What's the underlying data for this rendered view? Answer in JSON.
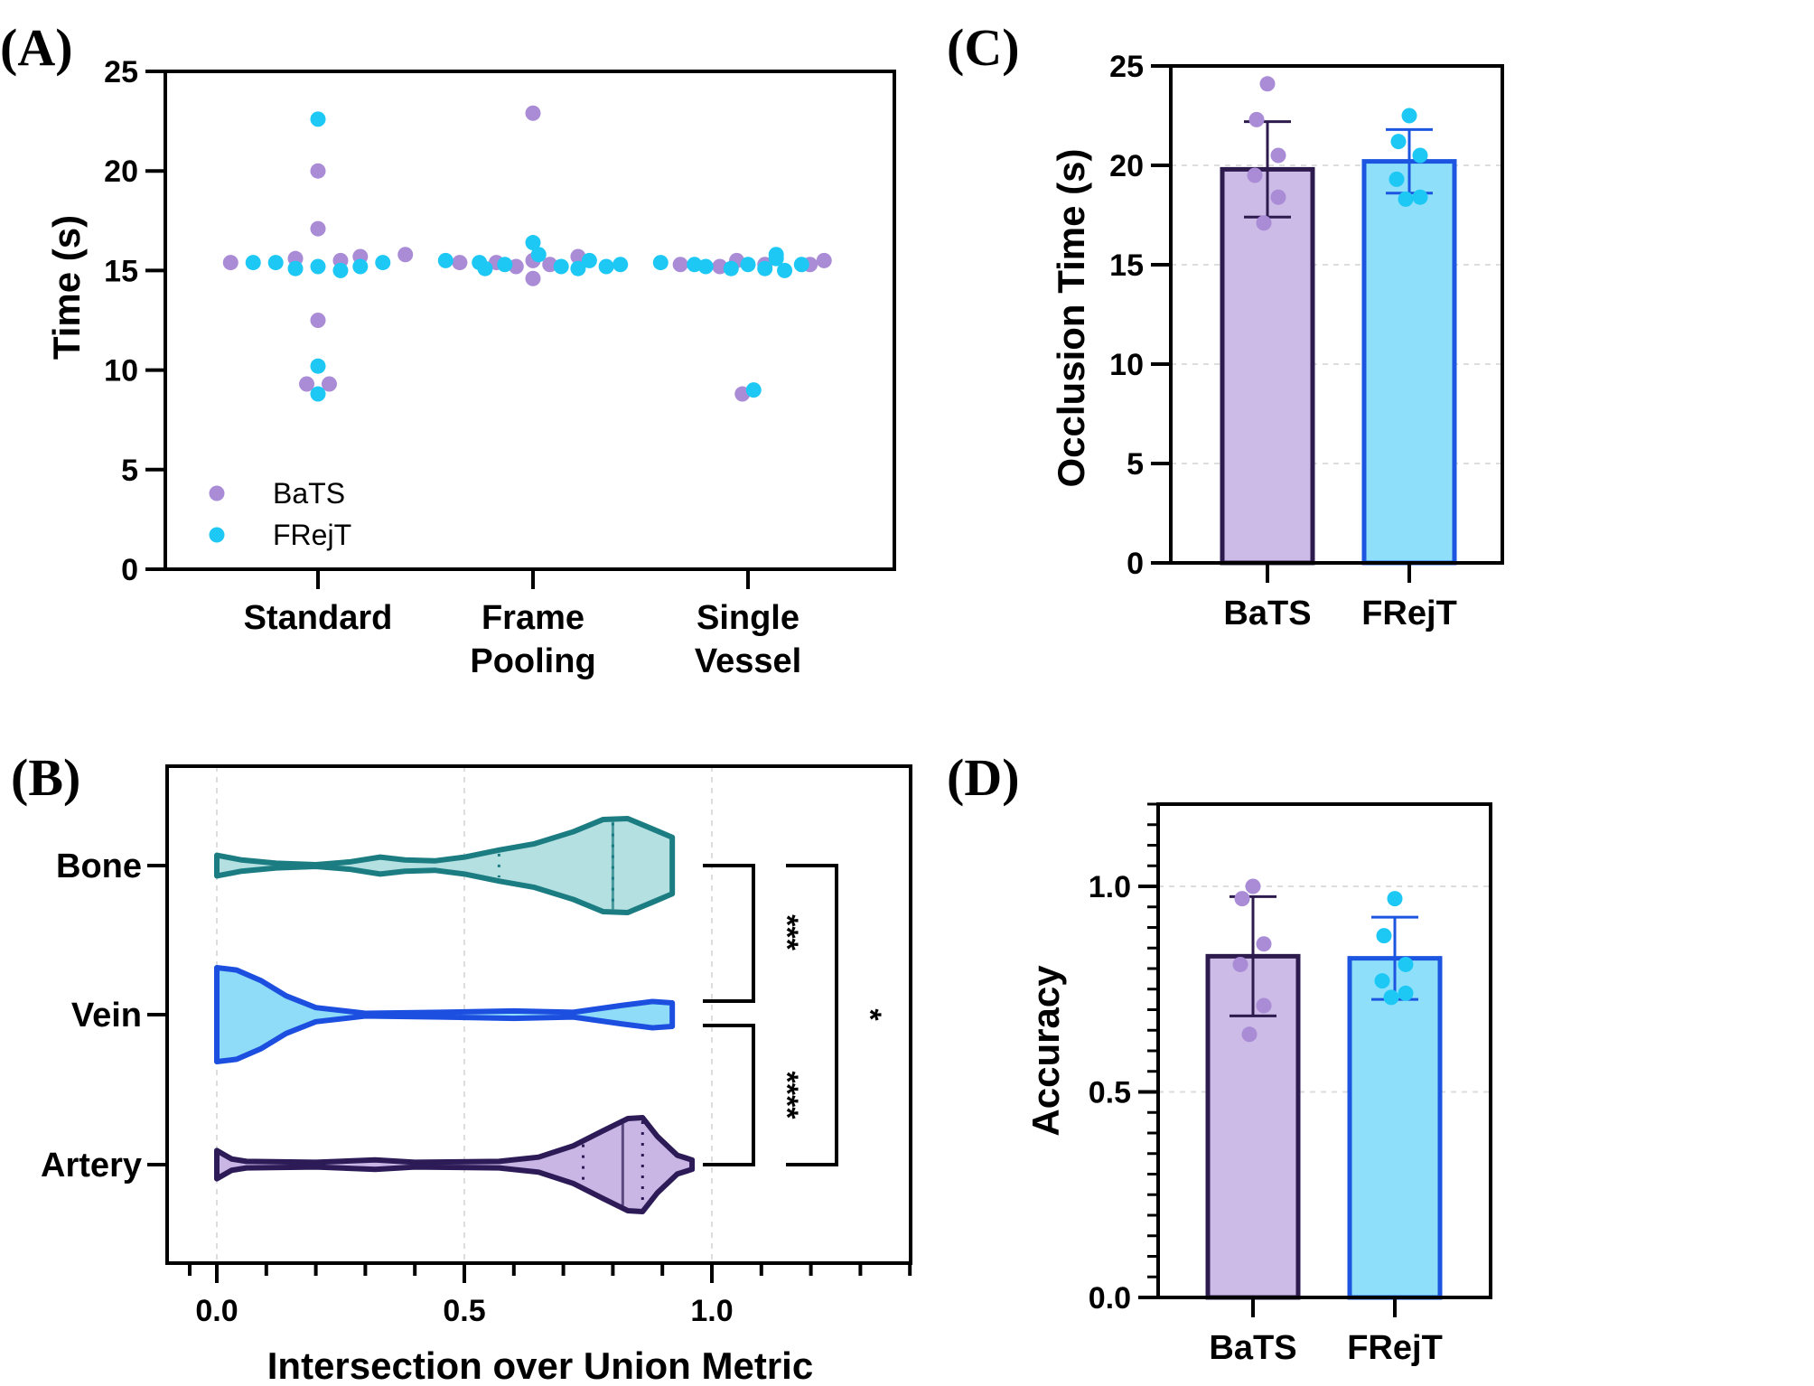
{
  "colors": {
    "bats_point": "#a98bd6",
    "frejt_point": "#1ec8f5",
    "bats_bar_fill": "#cbbbe6",
    "bats_bar_edge": "#2d1b4e",
    "frejt_bar_fill": "#8ee0fa",
    "frejt_bar_edge": "#1c55e0",
    "bone_fill": "#b5e0e2",
    "bone_edge": "#1b7c82",
    "vein_fill": "#8edcf8",
    "vein_edge": "#1c4fe0",
    "artery_fill": "#c9b6e4",
    "artery_edge": "#2d1b57",
    "grid": "#dddddd"
  },
  "chart_data": [
    {
      "id": "A",
      "panel_label": "(A)",
      "type": "scatter",
      "ylabel": "Time (s)",
      "ylim": [
        0,
        25
      ],
      "yticks": [
        "0",
        "5",
        "10",
        "15",
        "20",
        "25"
      ],
      "categories": [
        "Standard",
        "Frame Pooling",
        "Single Vessel"
      ],
      "category_lines": [
        [
          "Standard"
        ],
        [
          "Frame",
          "Pooling"
        ],
        [
          "Single",
          "Vessel"
        ]
      ],
      "legend": {
        "position": "bottom-left",
        "entries": [
          "BaTS",
          "FRejT"
        ]
      },
      "series": [
        {
          "name": "BaTS",
          "points": [
            {
              "cat": 0,
              "offset": -0.31,
              "y": 15.4
            },
            {
              "cat": 0,
              "offset": -0.08,
              "y": 15.6
            },
            {
              "cat": 0,
              "offset": 0.08,
              "y": 15.5
            },
            {
              "cat": 0,
              "offset": 0.15,
              "y": 15.7
            },
            {
              "cat": 0,
              "offset": 0.31,
              "y": 15.8
            },
            {
              "cat": 0,
              "offset": 0.0,
              "y": 20.0
            },
            {
              "cat": 0,
              "offset": 0.0,
              "y": 17.1
            },
            {
              "cat": 0,
              "offset": 0.0,
              "y": 12.5
            },
            {
              "cat": 0,
              "offset": -0.04,
              "y": 9.3
            },
            {
              "cat": 0,
              "offset": 0.04,
              "y": 9.3
            },
            {
              "cat": 1,
              "offset": 0.0,
              "y": 22.9
            },
            {
              "cat": 1,
              "offset": -0.26,
              "y": 15.4
            },
            {
              "cat": 1,
              "offset": -0.13,
              "y": 15.4
            },
            {
              "cat": 1,
              "offset": -0.06,
              "y": 15.2
            },
            {
              "cat": 1,
              "offset": 0.0,
              "y": 15.5
            },
            {
              "cat": 1,
              "offset": 0.06,
              "y": 15.3
            },
            {
              "cat": 1,
              "offset": 0.16,
              "y": 15.7
            },
            {
              "cat": 1,
              "offset": 0.0,
              "y": 14.6
            },
            {
              "cat": 2,
              "offset": -0.24,
              "y": 15.3
            },
            {
              "cat": 2,
              "offset": -0.1,
              "y": 15.2
            },
            {
              "cat": 2,
              "offset": -0.04,
              "y": 15.5
            },
            {
              "cat": 2,
              "offset": 0.06,
              "y": 15.3
            },
            {
              "cat": 2,
              "offset": 0.22,
              "y": 15.3
            },
            {
              "cat": 2,
              "offset": 0.27,
              "y": 15.5
            },
            {
              "cat": 2,
              "offset": -0.02,
              "y": 8.8
            }
          ]
        },
        {
          "name": "FRejT",
          "points": [
            {
              "cat": 0,
              "offset": -0.23,
              "y": 15.4
            },
            {
              "cat": 0,
              "offset": -0.15,
              "y": 15.4
            },
            {
              "cat": 0,
              "offset": -0.08,
              "y": 15.1
            },
            {
              "cat": 0,
              "offset": 0.0,
              "y": 15.2
            },
            {
              "cat": 0,
              "offset": 0.08,
              "y": 15.0
            },
            {
              "cat": 0,
              "offset": 0.15,
              "y": 15.2
            },
            {
              "cat": 0,
              "offset": 0.23,
              "y": 15.4
            },
            {
              "cat": 0,
              "offset": 0.0,
              "y": 22.6
            },
            {
              "cat": 0,
              "offset": 0.0,
              "y": 10.2
            },
            {
              "cat": 0,
              "offset": 0.0,
              "y": 8.8
            },
            {
              "cat": 1,
              "offset": -0.31,
              "y": 15.5
            },
            {
              "cat": 1,
              "offset": -0.19,
              "y": 15.4
            },
            {
              "cat": 1,
              "offset": -0.17,
              "y": 15.1
            },
            {
              "cat": 1,
              "offset": -0.1,
              "y": 15.3
            },
            {
              "cat": 1,
              "offset": 0.0,
              "y": 16.4
            },
            {
              "cat": 1,
              "offset": 0.02,
              "y": 15.8
            },
            {
              "cat": 1,
              "offset": 0.1,
              "y": 15.2
            },
            {
              "cat": 1,
              "offset": 0.16,
              "y": 15.1
            },
            {
              "cat": 1,
              "offset": 0.2,
              "y": 15.5
            },
            {
              "cat": 1,
              "offset": 0.26,
              "y": 15.2
            },
            {
              "cat": 1,
              "offset": 0.31,
              "y": 15.3
            },
            {
              "cat": 2,
              "offset": -0.31,
              "y": 15.4
            },
            {
              "cat": 2,
              "offset": -0.19,
              "y": 15.3
            },
            {
              "cat": 2,
              "offset": -0.15,
              "y": 15.2
            },
            {
              "cat": 2,
              "offset": -0.06,
              "y": 15.1
            },
            {
              "cat": 2,
              "offset": 0.0,
              "y": 15.3
            },
            {
              "cat": 2,
              "offset": 0.06,
              "y": 15.1
            },
            {
              "cat": 2,
              "offset": 0.1,
              "y": 15.6
            },
            {
              "cat": 2,
              "offset": 0.13,
              "y": 15.0
            },
            {
              "cat": 2,
              "offset": 0.1,
              "y": 15.8
            },
            {
              "cat": 2,
              "offset": 0.19,
              "y": 15.3
            },
            {
              "cat": 2,
              "offset": 0.02,
              "y": 9.0
            }
          ]
        }
      ]
    },
    {
      "id": "B",
      "panel_label": "(B)",
      "type": "violin",
      "xlabel": "Intersection over Union Metric",
      "xlim": [
        -0.1,
        1.4
      ],
      "xticks": [
        "0.0",
        "0.5",
        "1.0"
      ],
      "xtick_values": [
        0,
        0.5,
        1.0
      ],
      "categories": [
        "Bone",
        "Vein",
        "Artery"
      ],
      "violins": [
        {
          "name": "Bone",
          "fill_key": "bone_fill",
          "edge_key": "bone_edge",
          "median": 0.8,
          "q1": 0.57,
          "q3": 0.8,
          "profile": [
            [
              0.0,
              0.22
            ],
            [
              0.05,
              0.12
            ],
            [
              0.12,
              0.05
            ],
            [
              0.2,
              0.02
            ],
            [
              0.27,
              0.08
            ],
            [
              0.33,
              0.18
            ],
            [
              0.38,
              0.12
            ],
            [
              0.44,
              0.1
            ],
            [
              0.5,
              0.18
            ],
            [
              0.57,
              0.33
            ],
            [
              0.64,
              0.46
            ],
            [
              0.72,
              0.72
            ],
            [
              0.78,
              0.98
            ],
            [
              0.83,
              1.0
            ],
            [
              0.88,
              0.78
            ],
            [
              0.92,
              0.6
            ],
            [
              0.92,
              0.0
            ]
          ]
        },
        {
          "name": "Vein",
          "fill_key": "vein_fill",
          "edge_key": "vein_edge",
          "median": 0.0,
          "q1": 0.0,
          "q3": 0.0,
          "profile": [
            [
              0.0,
              1.0
            ],
            [
              0.04,
              0.95
            ],
            [
              0.09,
              0.72
            ],
            [
              0.14,
              0.4
            ],
            [
              0.2,
              0.15
            ],
            [
              0.3,
              0.03
            ],
            [
              0.45,
              0.05
            ],
            [
              0.6,
              0.08
            ],
            [
              0.72,
              0.05
            ],
            [
              0.82,
              0.2
            ],
            [
              0.88,
              0.28
            ],
            [
              0.92,
              0.25
            ],
            [
              0.92,
              0.0
            ]
          ]
        },
        {
          "name": "Artery",
          "fill_key": "artery_fill",
          "edge_key": "artery_edge",
          "median": 0.82,
          "q1": 0.74,
          "q3": 0.86,
          "profile": [
            [
              0.0,
              0.3
            ],
            [
              0.03,
              0.12
            ],
            [
              0.06,
              0.07
            ],
            [
              0.2,
              0.05
            ],
            [
              0.32,
              0.1
            ],
            [
              0.4,
              0.05
            ],
            [
              0.57,
              0.07
            ],
            [
              0.65,
              0.16
            ],
            [
              0.72,
              0.4
            ],
            [
              0.78,
              0.72
            ],
            [
              0.83,
              0.98
            ],
            [
              0.86,
              1.0
            ],
            [
              0.89,
              0.6
            ],
            [
              0.93,
              0.2
            ],
            [
              0.96,
              0.1
            ],
            [
              0.96,
              0.0
            ]
          ]
        }
      ],
      "significance": [
        {
          "label": "***",
          "from": "Bone",
          "to": "Vein"
        },
        {
          "label": "****",
          "from": "Vein",
          "to": "Artery"
        },
        {
          "label": "*",
          "from": "Bone",
          "to": "Artery"
        }
      ]
    },
    {
      "id": "C",
      "panel_label": "(C)",
      "type": "bar",
      "ylabel": "Occlusion Time (s)",
      "ylim": [
        0,
        25
      ],
      "yticks": [
        "0",
        "5",
        "10",
        "15",
        "20",
        "25"
      ],
      "categories": [
        "BaTS",
        "FRejT"
      ],
      "values": [
        19.8,
        20.2
      ],
      "errors": [
        2.4,
        1.6
      ],
      "points": [
        [
          24.1,
          22.3,
          20.5,
          19.5,
          18.4,
          17.1
        ],
        [
          22.5,
          21.2,
          20.5,
          19.3,
          18.4,
          18.3
        ]
      ]
    },
    {
      "id": "D",
      "panel_label": "(D)",
      "type": "bar",
      "ylabel": "Accuracy",
      "ylim": [
        0,
        1.2
      ],
      "yticks": [
        "0.0",
        "0.5",
        "1.0"
      ],
      "ytick_values": [
        0,
        0.5,
        1.0
      ],
      "categories": [
        "BaTS",
        "FRejT"
      ],
      "values": [
        0.83,
        0.825
      ],
      "errors": [
        0.145,
        0.1
      ],
      "points": [
        [
          1.0,
          0.97,
          0.86,
          0.81,
          0.71,
          0.64
        ],
        [
          0.97,
          0.88,
          0.81,
          0.77,
          0.74,
          0.73
        ]
      ]
    }
  ]
}
